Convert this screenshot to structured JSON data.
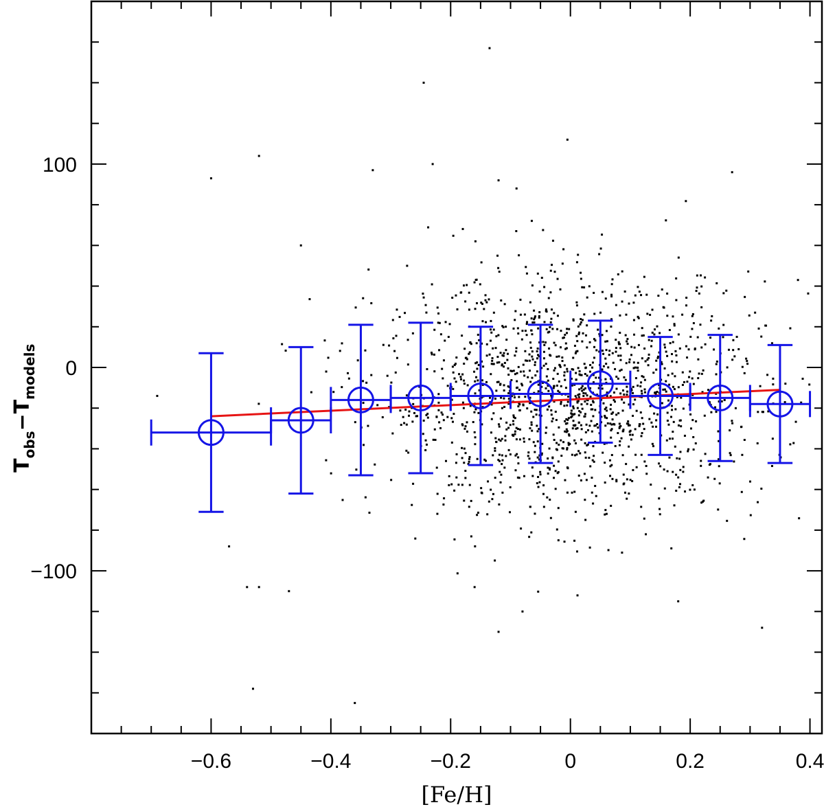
{
  "chart_data": {
    "type": "scatter",
    "title": "",
    "xlabel": "[Fe/H]",
    "ylabel": {
      "base1": "T",
      "sub1": "obs",
      "minus": "−",
      "base2": "T",
      "sub2": "models"
    },
    "xlim": [
      -0.8,
      0.42
    ],
    "ylim": [
      -180,
      180
    ],
    "x_ticks": [
      {
        "value": -0.6,
        "label": "−0.6"
      },
      {
        "value": -0.4,
        "label": "−0.4"
      },
      {
        "value": -0.2,
        "label": "−0.2"
      },
      {
        "value": 0,
        "label": "0"
      },
      {
        "value": 0.2,
        "label": "0.2"
      },
      {
        "value": 0.4,
        "label": "0.4"
      }
    ],
    "y_ticks": [
      {
        "value": -100,
        "label": "−100"
      },
      {
        "value": 0,
        "label": "0"
      },
      {
        "value": 100,
        "label": "100"
      }
    ],
    "x_minor_step": 0.05,
    "y_minor_step": 20,
    "colors": {
      "points": "#000000",
      "binned": "#1414e6",
      "fit": "#e61414"
    },
    "scatter": {
      "description": "individual stars (small black dots)",
      "count": 1500,
      "center_x": 0.0,
      "sigma_x": 0.16,
      "center_y": -14,
      "sigma_y": 29,
      "x_range": [
        -0.7,
        0.41
      ],
      "outliers": [
        [
          -0.135,
          157
        ],
        [
          -0.245,
          140
        ],
        [
          -0.005,
          112
        ],
        [
          -0.52,
          104
        ],
        [
          -0.6,
          93
        ],
        [
          -0.23,
          100
        ],
        [
          0.27,
          96
        ],
        [
          -0.33,
          97
        ],
        [
          -0.12,
          92
        ],
        [
          -0.09,
          88
        ],
        [
          -0.53,
          -158
        ],
        [
          -0.12,
          -130
        ],
        [
          -0.08,
          -120
        ],
        [
          0.32,
          -128
        ],
        [
          -0.57,
          -88
        ],
        [
          -0.54,
          -108
        ],
        [
          -0.47,
          -110
        ],
        [
          -0.52,
          -108
        ],
        [
          -0.16,
          -108
        ],
        [
          0.18,
          -115
        ],
        [
          -0.36,
          -165
        ],
        [
          -0.69,
          -14
        ],
        [
          -0.45,
          60
        ],
        [
          0.38,
          43
        ]
      ]
    },
    "series": [
      {
        "name": "binned means",
        "x": [
          -0.6,
          -0.45,
          -0.35,
          -0.25,
          -0.15,
          -0.05,
          0.05,
          0.15,
          0.25,
          0.35
        ],
        "y": [
          -32,
          -26,
          -16,
          -15,
          -14,
          -13,
          -8,
          -14,
          -15,
          -18
        ],
        "xerr": [
          0.1,
          0.05,
          0.05,
          0.05,
          0.05,
          0.05,
          0.05,
          0.05,
          0.05,
          0.05
        ],
        "yerr_low": [
          -71,
          -62,
          -53,
          -52,
          -48,
          -47,
          -37,
          -43,
          -46,
          -47
        ],
        "yerr_high": [
          7,
          10,
          21,
          22,
          20,
          21,
          23,
          15,
          16,
          11
        ]
      },
      {
        "name": "linear fit",
        "x": [
          -0.6,
          0.35
        ],
        "y": [
          -24,
          -11
        ]
      }
    ]
  }
}
